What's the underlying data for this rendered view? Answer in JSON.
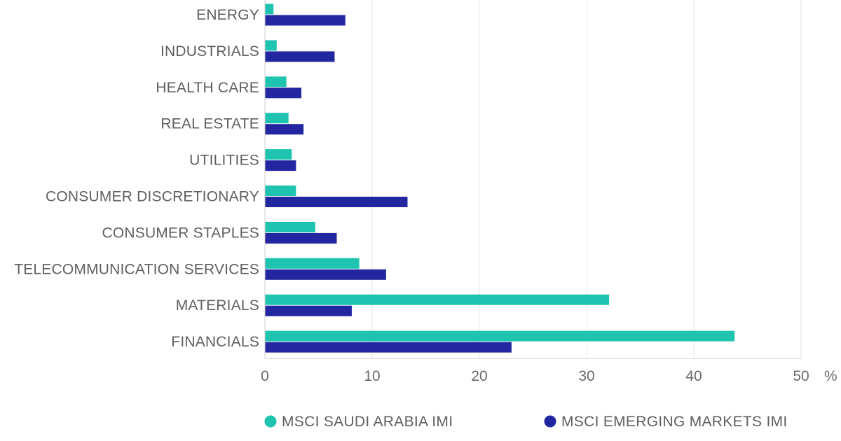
{
  "chart_data": {
    "type": "bar",
    "orientation": "horizontal",
    "categories": [
      "ENERGY",
      "INDUSTRIALS",
      "HEALTH CARE",
      "REAL ESTATE",
      "UTILITIES",
      "CONSUMER DISCRETIONARY",
      "CONSUMER STAPLES",
      "TELECOMMUNICATION SERVICES",
      "MATERIALS",
      "FINANCIALS"
    ],
    "series": [
      {
        "name": "MSCI SAUDI ARABIA IMI",
        "color": "#1ec4b0",
        "values": [
          0.8,
          1.1,
          2.0,
          2.2,
          2.5,
          2.9,
          4.7,
          8.8,
          32.1,
          43.8
        ]
      },
      {
        "name": "MSCI EMERGING MARKETS IMI",
        "color": "#2226a1",
        "values": [
          7.5,
          6.5,
          3.4,
          3.6,
          2.9,
          13.3,
          6.7,
          11.3,
          8.1,
          23.0
        ]
      }
    ],
    "xlim": [
      0,
      50
    ],
    "xticks": [
      "0",
      "10",
      "20",
      "30",
      "40",
      "50"
    ],
    "unit": "%",
    "grid": true,
    "legend_position": "bottom"
  }
}
